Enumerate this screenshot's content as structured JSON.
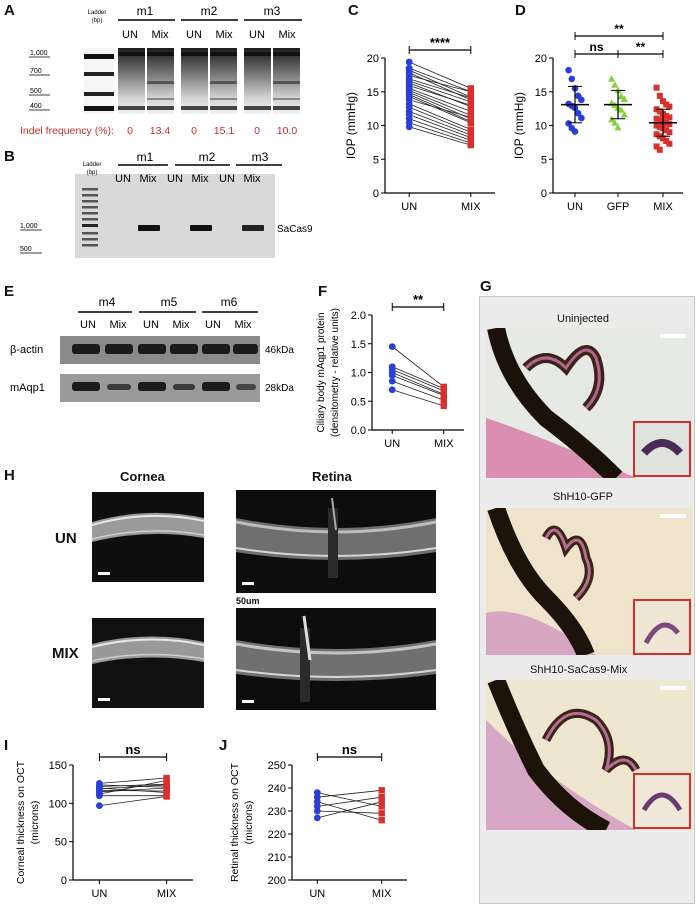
{
  "panel_letters": [
    "A",
    "B",
    "C",
    "D",
    "E",
    "F",
    "G",
    "H",
    "I",
    "J"
  ],
  "panelA": {
    "ladder_label": "Ladder",
    "ladder_unit": "(bp)",
    "ladder_sizes": [
      "1,000",
      "700",
      "500",
      "400"
    ],
    "mice": [
      "m1",
      "m2",
      "m3"
    ],
    "conditions": [
      "UN",
      "Mix"
    ],
    "indel_label": "Indel frequency (%):",
    "indel_values": [
      "0",
      "13.4",
      "0",
      "15.1",
      "0",
      "10.0"
    ],
    "indel_color": "#c8312b"
  },
  "panelB": {
    "ladder_label": "Ladder",
    "ladder_unit": "(bp)",
    "ladder_sizes": [
      "1,000",
      "500"
    ],
    "mice": [
      "m1",
      "m2",
      "m3"
    ],
    "conditions": [
      "UN",
      "Mix"
    ],
    "band_label": "SaCas9"
  },
  "panelE": {
    "mice": [
      "m4",
      "m5",
      "m6"
    ],
    "conditions": [
      "UN",
      "Mix"
    ],
    "rows": [
      {
        "label": "β-actin",
        "size": "46kDa"
      },
      {
        "label": "mAqp1",
        "size": "28kDa"
      }
    ]
  },
  "panelG": {
    "titles": [
      "Uninjected",
      "ShH10-GFP",
      "ShH10-SaCas9-Mix"
    ]
  },
  "panelH": {
    "col_titles": [
      "Cornea",
      "Retina"
    ],
    "row_labels": [
      "UN",
      "MIX"
    ],
    "scale_label": "50um"
  },
  "colors": {
    "blue": "#2b3fd6",
    "red": "#d8302a",
    "green": "#86d13b"
  },
  "chart_data": [
    {
      "panel": "C",
      "type": "scatter",
      "paired": true,
      "categories": [
        "UN",
        "MIX"
      ],
      "ylabel": "IOP (mmHg)",
      "ylim": [
        0,
        20
      ],
      "yticks": [
        0,
        5,
        10,
        15,
        20
      ],
      "significance": "****",
      "series": [
        {
          "values": [
            19.4,
            18.5,
            18.2,
            17.8,
            17.4,
            16.9,
            16.6,
            16.3,
            15.9,
            15.5,
            15.2,
            14.9,
            14.6,
            14.3,
            13.8,
            13.2,
            12.7,
            12.1,
            11.6,
            11.0,
            10.4,
            9.8
          ]
        },
        {
          "values": [
            15.5,
            15.0,
            14.2,
            13.8,
            15.0,
            14.1,
            13.5,
            12.8,
            13.0,
            12.1,
            11.5,
            11.0,
            10.6,
            10.4,
            11.2,
            9.4,
            9.0,
            8.6,
            8.2,
            7.8,
            7.4,
            7.1
          ]
        }
      ]
    },
    {
      "panel": "D",
      "type": "scatter",
      "categories": [
        "UN",
        "GFP",
        "MIX"
      ],
      "ylabel": "IOP (mmHg)",
      "ylim": [
        0,
        20
      ],
      "yticks": [
        0,
        5,
        10,
        15,
        20
      ],
      "significance": [
        {
          "pair": [
            "UN",
            "MIX"
          ],
          "label": "**"
        },
        {
          "pair": [
            "UN",
            "GFP"
          ],
          "label": "ns"
        },
        {
          "pair": [
            "GFP",
            "MIX"
          ],
          "label": "**"
        }
      ],
      "groups": [
        {
          "name": "UN",
          "values": [
            18.2,
            16.9,
            15.5,
            14.4,
            13.8,
            13.2,
            12.9,
            12.6,
            11.8,
            11.1,
            10.3,
            9.6,
            9.1
          ],
          "mean": 13.1,
          "sd": 2.7
        },
        {
          "name": "GFP",
          "values": [
            16.9,
            16.0,
            15.2,
            14.3,
            13.9,
            13.3,
            13.0,
            12.6,
            12.3,
            11.6,
            10.9,
            10.4,
            9.7
          ],
          "mean": 13.1,
          "sd": 2.1
        },
        {
          "name": "MIX",
          "values": [
            15.6,
            14.4,
            13.6,
            13.1,
            12.8,
            12.4,
            12.1,
            11.7,
            11.4,
            11.2,
            11.0,
            10.8,
            10.6,
            10.4,
            10.2,
            10.0,
            9.8,
            9.6,
            9.3,
            9.0,
            8.7,
            8.4,
            8.1,
            7.7,
            7.3,
            6.9,
            6.4
          ],
          "mean": 10.4,
          "sd": 2.0
        }
      ]
    },
    {
      "panel": "F",
      "type": "scatter",
      "paired": true,
      "categories": [
        "UN",
        "MIX"
      ],
      "ylabel": "Ciliary body mAqp1 protein (densitometry - relative units)",
      "ylim": [
        0,
        2
      ],
      "yticks": [
        0.0,
        0.5,
        1.0,
        1.5,
        2.0
      ],
      "significance": "**",
      "series": [
        {
          "values": [
            1.45,
            1.1,
            1.05,
            1.0,
            0.95,
            0.85,
            0.7
          ]
        },
        {
          "values": [
            0.75,
            0.72,
            0.68,
            0.62,
            0.6,
            0.52,
            0.42
          ]
        }
      ]
    },
    {
      "panel": "I",
      "type": "scatter",
      "paired": true,
      "categories": [
        "UN",
        "MIX"
      ],
      "ylabel": "Corneal thickness on OCT (microns)",
      "ylim": [
        0,
        150
      ],
      "yticks": [
        0,
        50,
        100,
        150
      ],
      "significance": "ns",
      "series": [
        {
          "values": [
            126,
            124,
            122,
            120,
            119,
            117,
            115,
            112,
            110,
            97
          ]
        },
        {
          "values": [
            133,
            121,
            125,
            114,
            124,
            116,
            120,
            130,
            110,
            109
          ]
        }
      ]
    },
    {
      "panel": "J",
      "type": "scatter",
      "paired": true,
      "categories": [
        "UN",
        "MIX"
      ],
      "ylabel": "Retinal thickness on OCT (microns)",
      "ylim": [
        200,
        250
      ],
      "yticks": [
        200,
        210,
        220,
        230,
        240,
        250
      ],
      "significance": "ns",
      "series": [
        {
          "values": [
            238,
            236,
            234,
            232,
            230,
            227
          ]
        },
        {
          "values": [
            232,
            239,
            226,
            236,
            229,
            234
          ]
        }
      ]
    }
  ]
}
